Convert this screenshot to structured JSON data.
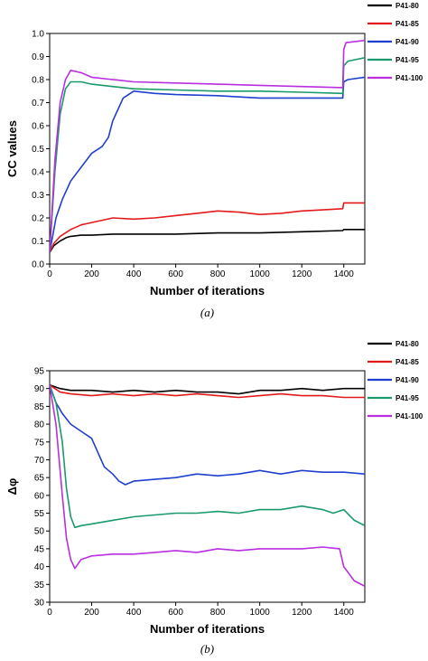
{
  "chart_data": [
    {
      "type": "line",
      "panel_label": "(a)",
      "title": "",
      "xlabel": "Number of iterations",
      "ylabel": "CC values",
      "xlim": [
        0,
        1500
      ],
      "ylim": [
        0,
        1.0
      ],
      "xticks": [
        0,
        200,
        400,
        600,
        800,
        1000,
        1200,
        1400
      ],
      "yticks": [
        0.0,
        0.1,
        0.2,
        0.3,
        0.4,
        0.5,
        0.6,
        0.7,
        0.8,
        0.9,
        1.0
      ],
      "ytick_labels": [
        "0.0",
        "0.1",
        "0.2",
        "0.3",
        "0.4",
        "0.5",
        "0.6",
        "0.7",
        "0.8",
        "0.9",
        "1.0"
      ],
      "legend_position": "top-right outside",
      "grid": false,
      "series": [
        {
          "name": "P41-80",
          "color": "#000000",
          "x": [
            0,
            20,
            50,
            80,
            100,
            150,
            200,
            300,
            400,
            600,
            800,
            1000,
            1200,
            1395,
            1400,
            1500
          ],
          "y": [
            0.05,
            0.08,
            0.1,
            0.115,
            0.12,
            0.125,
            0.125,
            0.13,
            0.13,
            0.13,
            0.135,
            0.135,
            0.14,
            0.145,
            0.15,
            0.15
          ]
        },
        {
          "name": "P41-85",
          "color": "#e31a1c",
          "x": [
            0,
            20,
            50,
            100,
            150,
            200,
            250,
            300,
            400,
            500,
            600,
            700,
            800,
            900,
            1000,
            1100,
            1200,
            1300,
            1395,
            1400,
            1500
          ],
          "y": [
            0.05,
            0.09,
            0.12,
            0.15,
            0.17,
            0.18,
            0.19,
            0.2,
            0.195,
            0.2,
            0.21,
            0.22,
            0.23,
            0.225,
            0.215,
            0.22,
            0.23,
            0.235,
            0.24,
            0.265,
            0.265
          ]
        },
        {
          "name": "P41-90",
          "color": "#1f3fd0",
          "x": [
            0,
            30,
            60,
            100,
            150,
            200,
            250,
            280,
            300,
            350,
            400,
            500,
            600,
            800,
            1000,
            1200,
            1395,
            1400,
            1420,
            1500
          ],
          "y": [
            0.05,
            0.2,
            0.28,
            0.36,
            0.42,
            0.48,
            0.51,
            0.55,
            0.62,
            0.72,
            0.75,
            0.74,
            0.735,
            0.73,
            0.72,
            0.72,
            0.72,
            0.79,
            0.8,
            0.81
          ]
        },
        {
          "name": "P41-95",
          "color": "#1a9a6a",
          "x": [
            0,
            25,
            50,
            75,
            100,
            150,
            200,
            300,
            400,
            600,
            800,
            1000,
            1200,
            1395,
            1400,
            1420,
            1500
          ],
          "y": [
            0.05,
            0.4,
            0.65,
            0.76,
            0.79,
            0.79,
            0.78,
            0.77,
            0.76,
            0.755,
            0.75,
            0.75,
            0.745,
            0.74,
            0.86,
            0.88,
            0.895
          ]
        },
        {
          "name": "P41-100",
          "color": "#b92ee0",
          "x": [
            0,
            25,
            50,
            75,
            100,
            150,
            200,
            300,
            400,
            600,
            800,
            1000,
            1200,
            1395,
            1400,
            1410,
            1500
          ],
          "y": [
            0.05,
            0.45,
            0.7,
            0.8,
            0.84,
            0.83,
            0.81,
            0.8,
            0.79,
            0.785,
            0.78,
            0.775,
            0.77,
            0.765,
            0.93,
            0.96,
            0.97
          ]
        }
      ]
    },
    {
      "type": "line",
      "panel_label": "(b)",
      "title": "",
      "xlabel": "Number of iterations",
      "ylabel": "Δφ",
      "xlim": [
        0,
        1500
      ],
      "ylim": [
        30,
        95
      ],
      "xticks": [
        0,
        200,
        400,
        600,
        800,
        1000,
        1200,
        1400
      ],
      "yticks": [
        30,
        35,
        40,
        45,
        50,
        55,
        60,
        65,
        70,
        75,
        80,
        85,
        90,
        95
      ],
      "ytick_labels": [
        "30",
        "35",
        "40",
        "45",
        "50",
        "55",
        "60",
        "65",
        "70",
        "75",
        "80",
        "85",
        "90",
        "95"
      ],
      "legend_position": "top-right outside",
      "grid": false,
      "series": [
        {
          "name": "P41-80",
          "color": "#000000",
          "x": [
            0,
            50,
            100,
            200,
            300,
            400,
            500,
            600,
            700,
            800,
            900,
            1000,
            1100,
            1200,
            1300,
            1400,
            1500
          ],
          "y": [
            91,
            90,
            89.5,
            89.5,
            89,
            89.5,
            89,
            89.5,
            89,
            89,
            88.5,
            89.5,
            89.5,
            90,
            89.5,
            90,
            90
          ]
        },
        {
          "name": "P41-85",
          "color": "#e31a1c",
          "x": [
            0,
            50,
            100,
            200,
            300,
            400,
            500,
            600,
            700,
            800,
            900,
            1000,
            1100,
            1200,
            1300,
            1400,
            1500
          ],
          "y": [
            91,
            89,
            88.5,
            88,
            88.5,
            88,
            88.5,
            88,
            88.5,
            88,
            87.5,
            88,
            88.5,
            88,
            88,
            87.5,
            87.5
          ]
        },
        {
          "name": "P41-90",
          "color": "#1f3fd0",
          "x": [
            0,
            30,
            60,
            100,
            150,
            200,
            230,
            260,
            300,
            330,
            360,
            400,
            500,
            600,
            700,
            800,
            900,
            1000,
            1100,
            1200,
            1300,
            1400,
            1500
          ],
          "y": [
            91,
            86,
            83,
            80,
            78,
            76,
            72,
            68,
            66,
            64,
            63,
            64,
            64.5,
            65,
            66,
            65.5,
            66,
            67,
            66,
            67,
            66.5,
            66.5,
            66
          ]
        },
        {
          "name": "P41-95",
          "color": "#1a9a6a",
          "x": [
            0,
            30,
            60,
            80,
            100,
            120,
            150,
            200,
            300,
            400,
            500,
            600,
            700,
            800,
            900,
            1000,
            1100,
            1200,
            1300,
            1350,
            1400,
            1450,
            1500
          ],
          "y": [
            91,
            86,
            75,
            62,
            54,
            51,
            51.5,
            52,
            53,
            54,
            54.5,
            55,
            55,
            55.5,
            55,
            56,
            56,
            57,
            56,
            55,
            56,
            53,
            51.5
          ]
        },
        {
          "name": "P41-100",
          "color": "#b92ee0",
          "x": [
            0,
            30,
            60,
            80,
            100,
            120,
            150,
            200,
            300,
            400,
            500,
            600,
            700,
            800,
            900,
            1000,
            1100,
            1200,
            1300,
            1380,
            1400,
            1450,
            1500
          ],
          "y": [
            91,
            80,
            60,
            48,
            42,
            39.5,
            42,
            43,
            43.5,
            43.5,
            44,
            44.5,
            44,
            45,
            44.5,
            45,
            45,
            45,
            45.5,
            45,
            40,
            36,
            34.5
          ]
        }
      ]
    }
  ]
}
